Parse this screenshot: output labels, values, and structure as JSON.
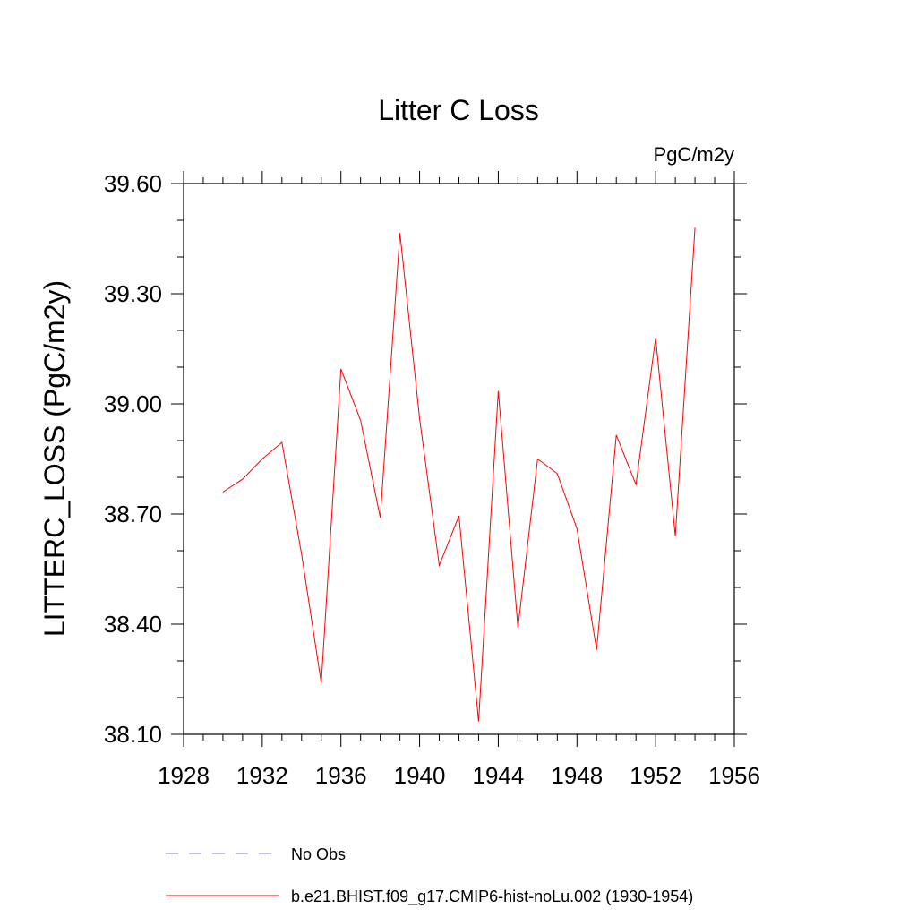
{
  "chart_data": {
    "type": "line",
    "title": "Litter C Loss",
    "units_label": "PgC/m2y",
    "ylabel": "LITTERC_LOSS  (PgC/m2y)",
    "xlabel": "",
    "xlim": [
      1928,
      1956
    ],
    "ylim": [
      38.1,
      39.6
    ],
    "x_ticks": [
      "1928",
      "1932",
      "1936",
      "1940",
      "1944",
      "1948",
      "1952",
      "1956"
    ],
    "y_ticks": [
      "38.10",
      "38.40",
      "38.70",
      "39.00",
      "39.30",
      "39.60"
    ],
    "grid": false,
    "legend_position": "bottom",
    "legend": [
      {
        "label": "No Obs",
        "style": "dashed",
        "color": "#7b7bd6"
      },
      {
        "label": "b.e21.BHIST.f09_g17.CMIP6-hist-noLu.002 (1930-1954)",
        "style": "solid",
        "color": "#ff0000"
      }
    ],
    "series": [
      {
        "name": "b.e21.BHIST.f09_g17.CMIP6-hist-noLu.002 (1930-1954)",
        "color": "#ff0000",
        "x": [
          1930,
          1931,
          1932,
          1933,
          1934,
          1935,
          1936,
          1937,
          1938,
          1939,
          1940,
          1941,
          1942,
          1943,
          1944,
          1945,
          1946,
          1947,
          1948,
          1949,
          1950,
          1951,
          1952,
          1953,
          1954
        ],
        "values": [
          38.76,
          38.795,
          38.85,
          38.895,
          38.59,
          38.24,
          39.095,
          38.955,
          38.69,
          39.465,
          38.96,
          38.56,
          38.695,
          38.135,
          39.035,
          38.39,
          38.85,
          38.81,
          38.66,
          38.33,
          38.915,
          38.78,
          39.18,
          38.64,
          39.48
        ]
      }
    ]
  }
}
